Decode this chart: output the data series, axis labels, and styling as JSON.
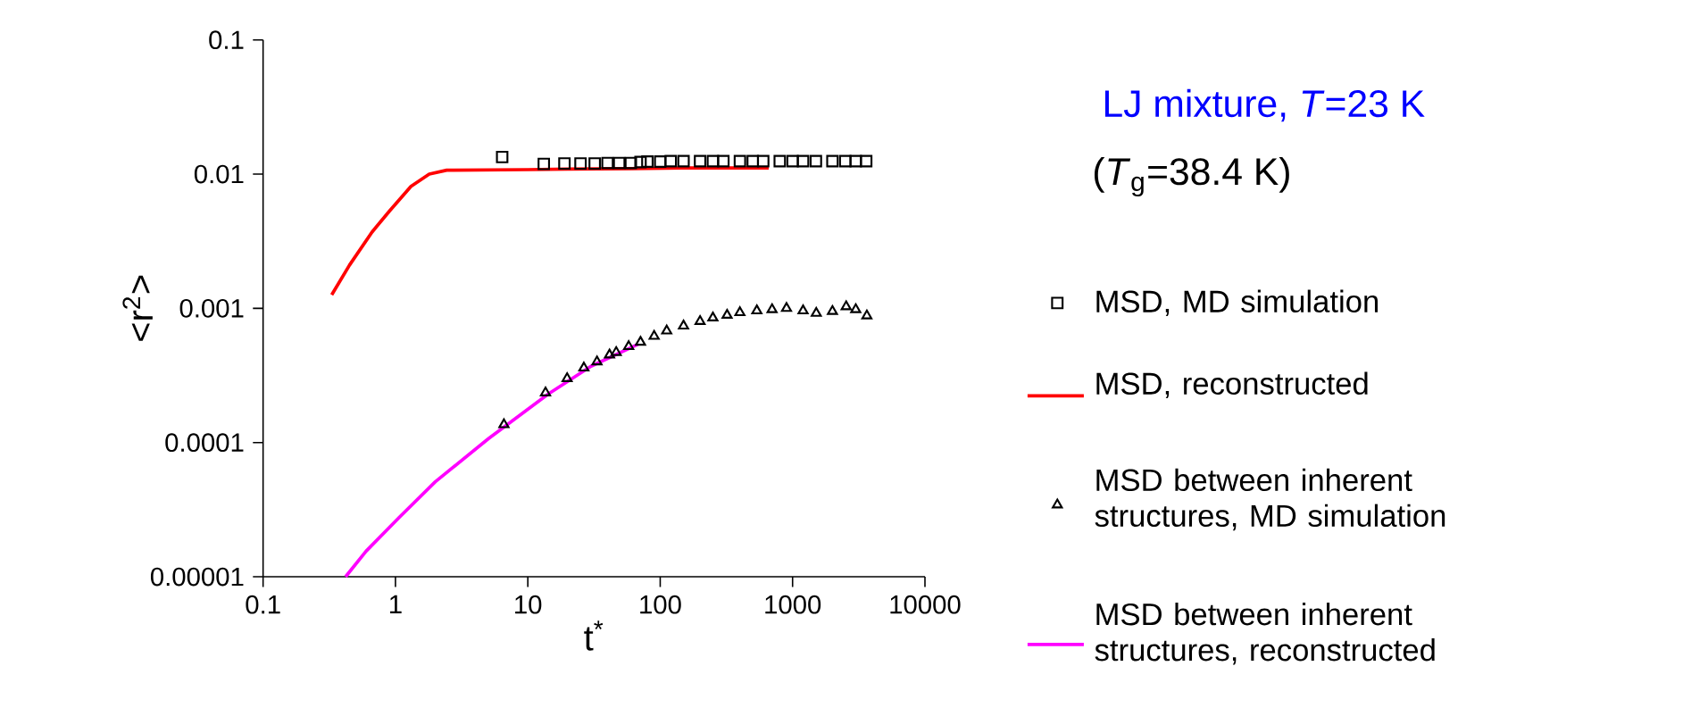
{
  "chart_data": {
    "type": "line",
    "title": "LJ mixture,  *T*=23 K",
    "subtitle": "(*T*$_{g}$=38.4 K)",
    "xlabel": "t$^{*}$",
    "ylabel": "<r$^{2}$>",
    "log": "xy",
    "xlim": [
      0.1,
      10000
    ],
    "ylim": [
      1e-05,
      0.1
    ],
    "xticks": [
      0.1,
      1,
      10,
      100,
      1000,
      10000
    ],
    "yticks": [
      {
        "value": 1e-05,
        "label": "0.00001"
      },
      0.0001,
      0.001,
      0.01,
      0.1
    ],
    "legend": "right",
    "grid": false,
    "series": [
      {
        "name": "MSD, MD simulation",
        "type": "scatter",
        "marker": "square",
        "color": "#000000",
        "x": [
          6.4,
          13.2,
          18.9,
          25,
          32,
          40,
          49,
          60,
          71,
          80,
          100,
          120,
          150,
          200,
          250,
          300,
          400,
          500,
          600,
          800,
          1000,
          1200,
          1500,
          2000,
          2500,
          3000,
          3600
        ],
        "values": [
          0.0134,
          0.0119,
          0.012,
          0.012,
          0.012,
          0.0121,
          0.0121,
          0.0121,
          0.0123,
          0.0124,
          0.0124,
          0.0125,
          0.0125,
          0.0125,
          0.0125,
          0.0125,
          0.0125,
          0.0125,
          0.0125,
          0.0125,
          0.0125,
          0.0125,
          0.0125,
          0.0125,
          0.0125,
          0.0125,
          0.0125
        ]
      },
      {
        "name": "MSD, reconstructed",
        "type": "line",
        "color": "#ff0000",
        "x": [
          0.33,
          0.45,
          0.665,
          0.9,
          1.31,
          1.8,
          2.44,
          10,
          20,
          60,
          150,
          660
        ],
        "values": [
          0.00126,
          0.0021,
          0.0037,
          0.0053,
          0.0081,
          0.01,
          0.0107,
          0.0108,
          0.0109,
          0.011,
          0.0111,
          0.0111
        ]
      },
      {
        "name": "MSD between inherent structures, MD simulation",
        "type": "scatter",
        "marker": "triangle",
        "color": "#000000",
        "x": [
          6.6,
          13.6,
          19.8,
          26.5,
          33.3,
          41.4,
          46.5,
          57.8,
          71,
          90,
          112,
          150,
          200,
          250,
          320,
          400,
          537,
          700,
          900,
          1200,
          1510,
          2000,
          2540,
          3000,
          3640
        ],
        "values": [
          0.000136,
          0.000235,
          0.0003,
          0.00036,
          0.0004,
          0.00045,
          0.00047,
          0.00052,
          0.00056,
          0.00062,
          0.00068,
          0.00074,
          0.0008,
          0.00085,
          0.00089,
          0.00093,
          0.00096,
          0.00098,
          0.001,
          0.00096,
          0.00092,
          0.00095,
          0.00103,
          0.00098,
          0.00088
        ]
      },
      {
        "name": "MSD between inherent structures, reconstructed",
        "type": "line",
        "color": "#ff00ff",
        "x": [
          0.42,
          0.6,
          1.06,
          2,
          5.05,
          14.3,
          30,
          68
        ],
        "values": [
          1e-05,
          1.55e-05,
          2.75e-05,
          5.1e-05,
          0.000107,
          0.00023,
          0.00037,
          0.00054
        ]
      }
    ]
  }
}
